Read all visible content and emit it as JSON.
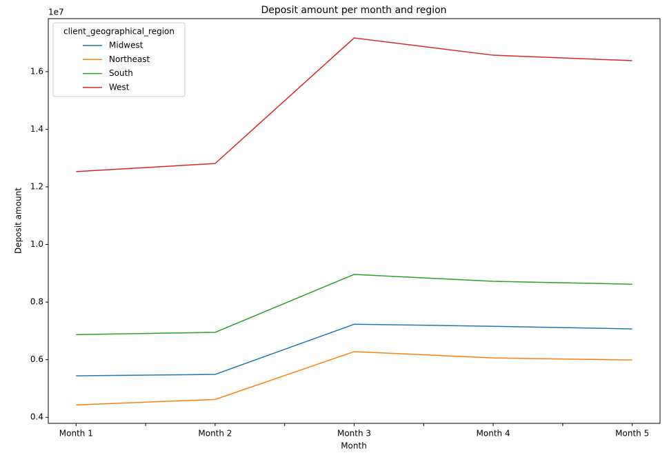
{
  "chart_data": {
    "type": "line",
    "title": "Deposit amount per month and region",
    "x_label": "Month",
    "y_label": "Deposit amount",
    "y_offset_label": "1e7",
    "categories": [
      "Month 1",
      "Month 2",
      "Month 3",
      "Month 4",
      "Month 5"
    ],
    "series": [
      {
        "name": "Midwest",
        "color": "#1f77b4",
        "values": [
          0.544,
          0.549,
          0.723,
          0.716,
          0.707
        ]
      },
      {
        "name": "Northeast",
        "color": "#ff7f0e",
        "values": [
          0.443,
          0.462,
          0.628,
          0.606,
          0.599
        ]
      },
      {
        "name": "South",
        "color": "#2ca02c",
        "values": [
          0.687,
          0.695,
          0.896,
          0.872,
          0.862
        ]
      },
      {
        "name": "West",
        "color": "#d62728",
        "values": [
          1.253,
          1.281,
          1.717,
          1.657,
          1.638
        ]
      }
    ],
    "ylim": [
      0.379,
      1.784
    ],
    "yticks": [
      0.4,
      0.6,
      0.8,
      {
        "value": 1.0,
        "label": "1.0"
      },
      1.2,
      1.4,
      1.6
    ],
    "legend_title": "client_geographical_region",
    "legend_position": "upper left",
    "grid": false
  }
}
